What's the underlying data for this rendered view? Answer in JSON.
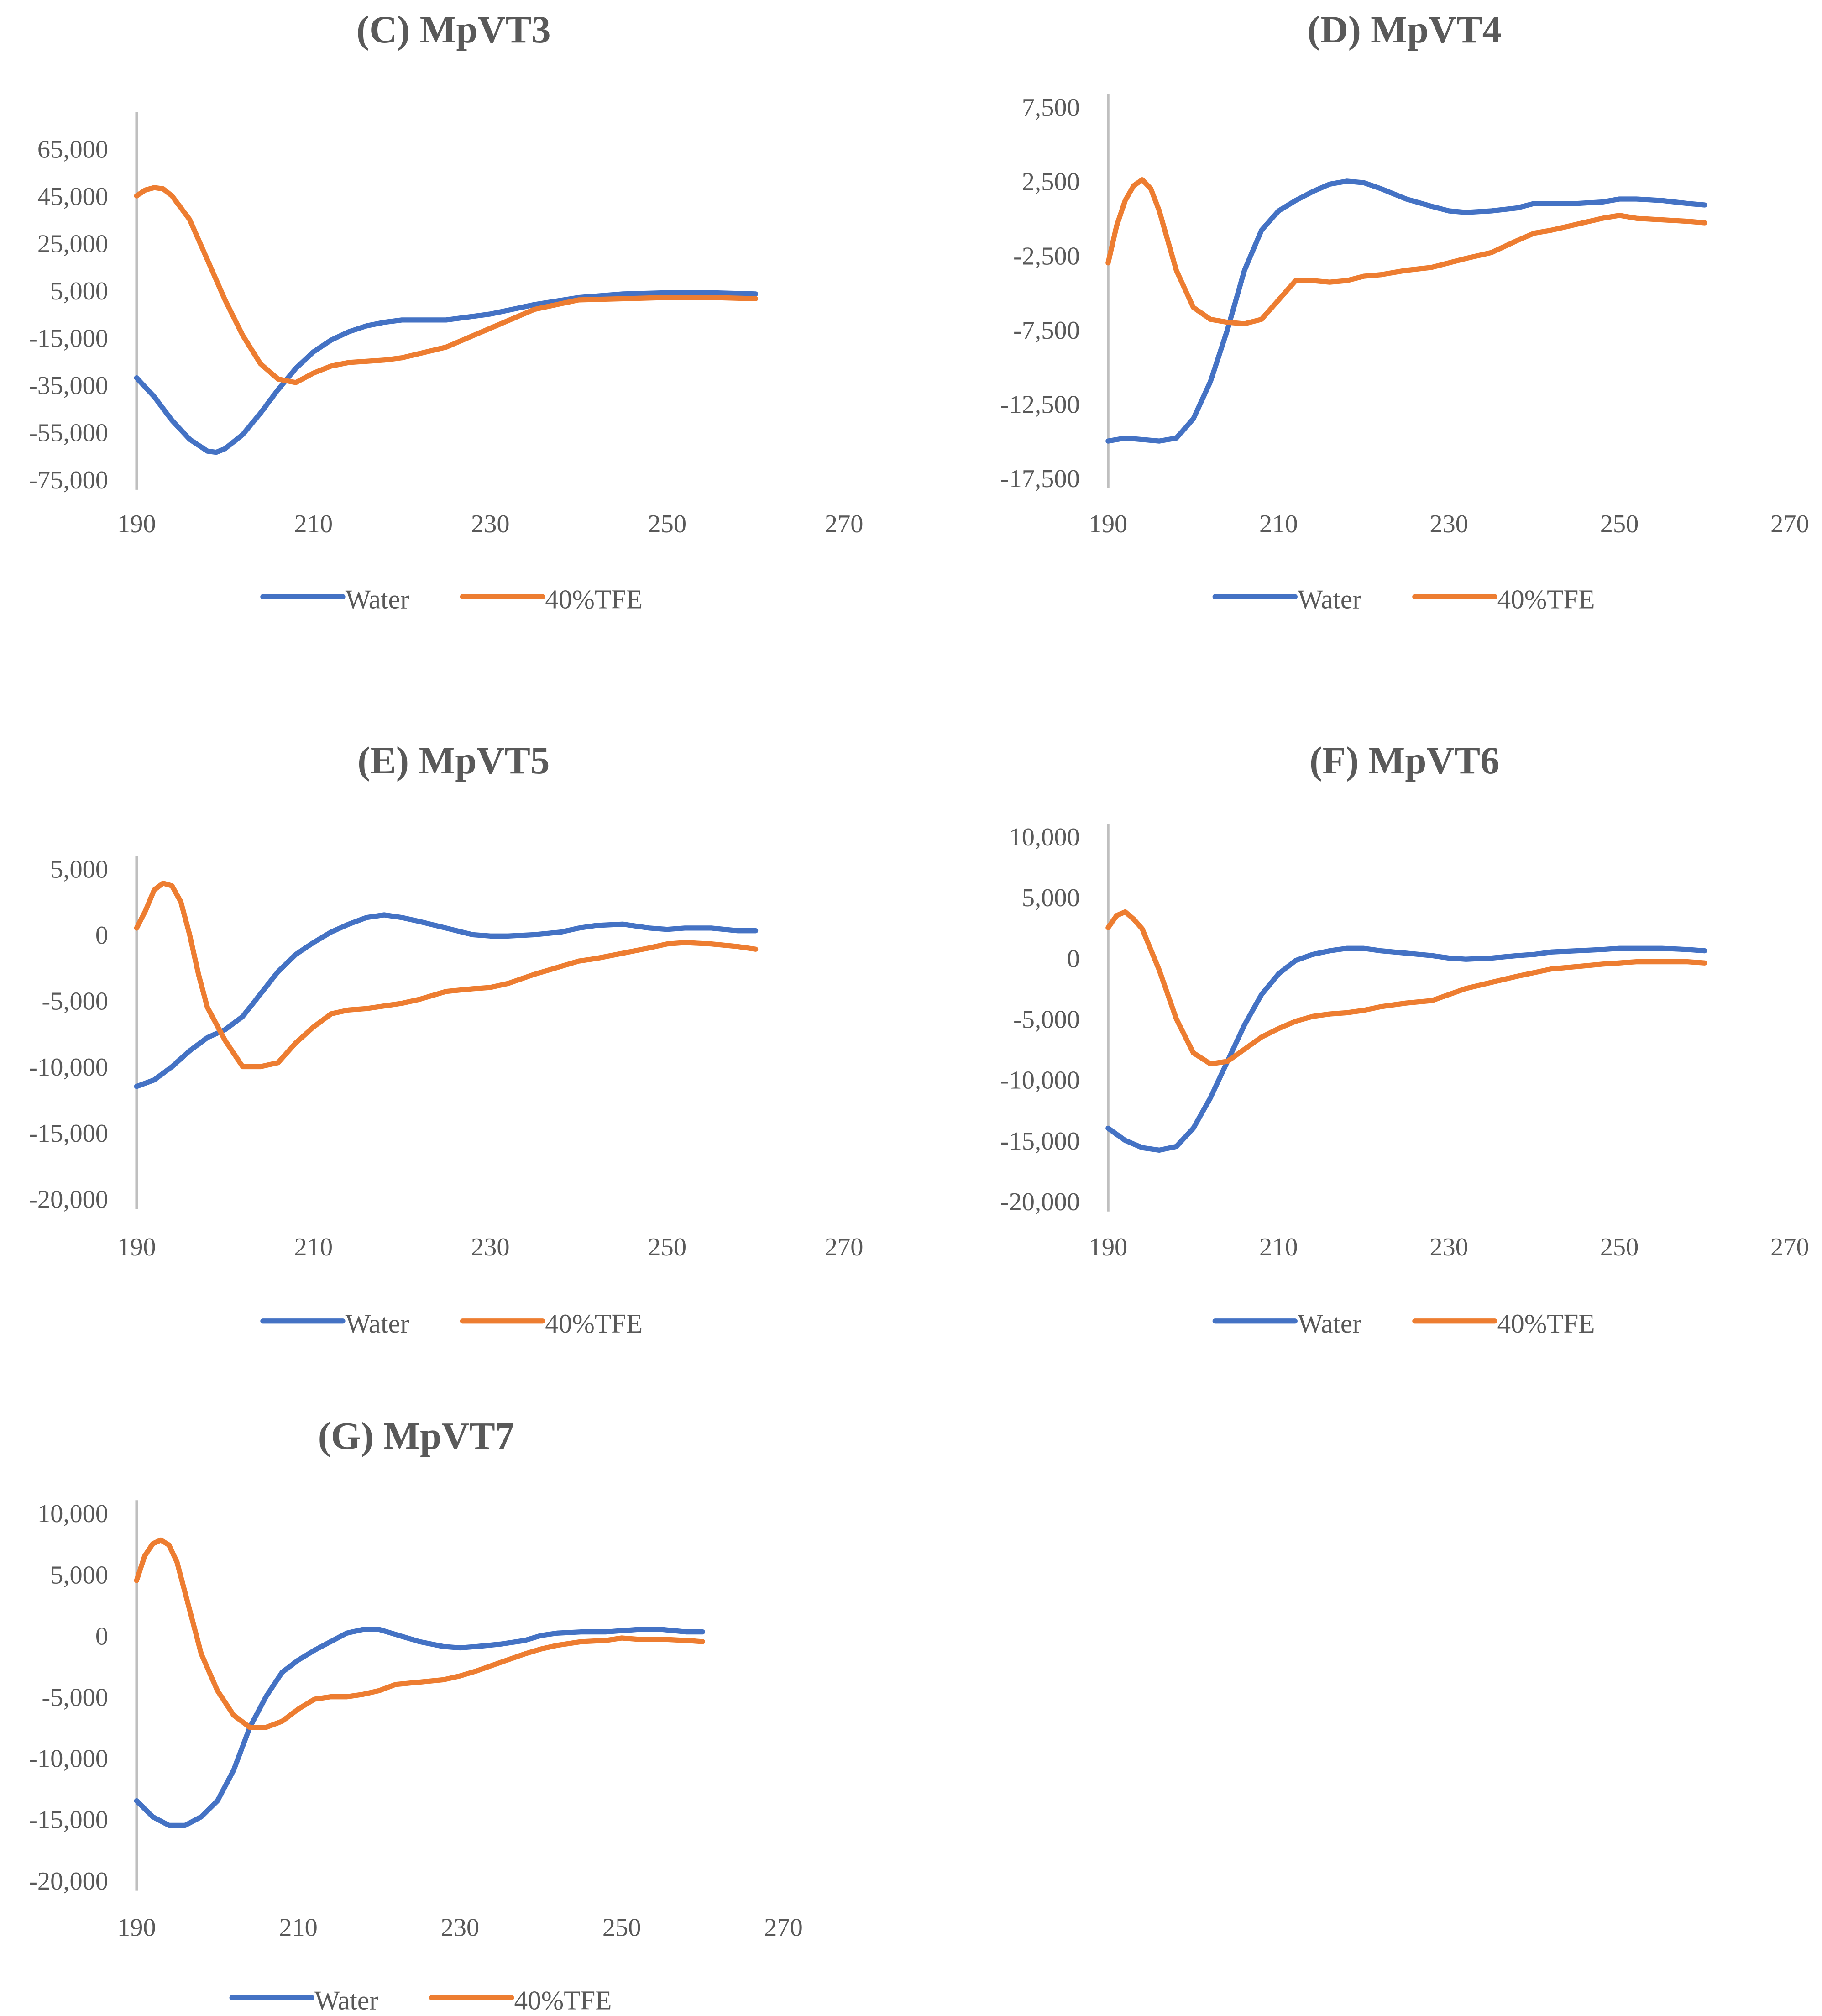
{
  "figure": {
    "series_names": [
      "Water",
      "40%TFE"
    ],
    "series_colors": [
      "#4472c4",
      "#ed7d31"
    ]
  },
  "chart_data": [
    {
      "type": "line",
      "title": "(C)  MpVT3",
      "xlim": [
        190,
        270
      ],
      "xticks": [
        190,
        210,
        230,
        250,
        270
      ],
      "xtick_labels": [
        "190",
        "210",
        "230",
        "250",
        "270"
      ],
      "ylim": [
        -75000,
        75000
      ],
      "yticks": [
        -75000,
        -55000,
        -35000,
        -15000,
        5000,
        25000,
        45000,
        65000
      ],
      "ytick_labels": [
        "-75,000",
        "-55,000",
        "-35,000",
        "-15,000",
        "5,000",
        "25,000",
        "45,000",
        "65,000"
      ],
      "legend": "bottom",
      "series": [
        {
          "name": "Water",
          "color": "#4472c4",
          "x": [
            190,
            192,
            194,
            196,
            198,
            199,
            200,
            202,
            204,
            206,
            208,
            210,
            212,
            214,
            216,
            218,
            220,
            225,
            230,
            235,
            240,
            245,
            250,
            255,
            260
          ],
          "y": [
            -32000,
            -40000,
            -50000,
            -58000,
            -63000,
            -63500,
            -62000,
            -56000,
            -47000,
            -37000,
            -28000,
            -21000,
            -16000,
            -12500,
            -10000,
            -8500,
            -7500,
            -7500,
            -5000,
            -1000,
            2000,
            3500,
            4000,
            4000,
            3500
          ]
        },
        {
          "name": "40%TFE",
          "color": "#ed7d31",
          "x": [
            190,
            191,
            192,
            193,
            194,
            196,
            198,
            200,
            202,
            204,
            206,
            208,
            210,
            212,
            214,
            216,
            218,
            220,
            225,
            230,
            235,
            240,
            245,
            250,
            255,
            260
          ],
          "y": [
            45000,
            47500,
            48500,
            48000,
            45000,
            35000,
            18000,
            1000,
            -14000,
            -26000,
            -32500,
            -34000,
            -30000,
            -27000,
            -25500,
            -25000,
            -24500,
            -23500,
            -19000,
            -11000,
            -3000,
            1000,
            1500,
            2000,
            2000,
            1500
          ]
        }
      ]
    },
    {
      "type": "line",
      "title": "(D)  MpVT4",
      "xlim": [
        190,
        270
      ],
      "xticks": [
        190,
        210,
        230,
        250,
        270
      ],
      "xtick_labels": [
        "190",
        "210",
        "230",
        "250",
        "270"
      ],
      "ylim": [
        -17500,
        7500
      ],
      "yticks": [
        -17500,
        -12500,
        -7500,
        -2500,
        2500,
        7500
      ],
      "ytick_labels": [
        "-17,500",
        "-12,500",
        "-7,500",
        "-2,500",
        "2,500",
        "7,500"
      ],
      "legend": "bottom",
      "series": [
        {
          "name": "Water",
          "color": "#4472c4",
          "x": [
            190,
            192,
            194,
            196,
            198,
            200,
            202,
            204,
            206,
            208,
            210,
            212,
            214,
            216,
            218,
            220,
            222,
            225,
            228,
            230,
            232,
            235,
            238,
            240,
            242,
            245,
            248,
            250,
            252,
            255,
            258,
            260
          ],
          "y": [
            -15000,
            -14800,
            -14900,
            -15000,
            -14800,
            -13500,
            -11000,
            -7500,
            -3500,
            -800,
            500,
            1200,
            1800,
            2300,
            2500,
            2400,
            2000,
            1300,
            800,
            500,
            400,
            500,
            700,
            1000,
            1000,
            1000,
            1100,
            1300,
            1300,
            1200,
            1000,
            900
          ]
        },
        {
          "name": "40%TFE",
          "color": "#ed7d31",
          "x": [
            190,
            191,
            192,
            193,
            194,
            195,
            196,
            197,
            198,
            200,
            202,
            204,
            206,
            208,
            210,
            212,
            214,
            216,
            218,
            220,
            222,
            225,
            228,
            230,
            232,
            235,
            238,
            240,
            242,
            245,
            248,
            250,
            252,
            255,
            258,
            260
          ],
          "y": [
            -3000,
            -500,
            1200,
            2200,
            2600,
            2000,
            500,
            -1500,
            -3500,
            -6000,
            -6800,
            -7000,
            -7100,
            -6800,
            -5500,
            -4200,
            -4200,
            -4300,
            -4200,
            -3900,
            -3800,
            -3500,
            -3300,
            -3000,
            -2700,
            -2300,
            -1500,
            -1000,
            -800,
            -400,
            0,
            200,
            0,
            -100,
            -200,
            -300
          ]
        }
      ]
    },
    {
      "type": "line",
      "title": "(E)  MpVT5",
      "xlim": [
        190,
        270
      ],
      "xticks": [
        190,
        210,
        230,
        250,
        270
      ],
      "xtick_labels": [
        "190",
        "210",
        "230",
        "250",
        "270"
      ],
      "ylim": [
        -20000,
        5000
      ],
      "yticks": [
        -20000,
        -15000,
        -10000,
        -5000,
        0,
        5000
      ],
      "ytick_labels": [
        "-20,000",
        "-15,000",
        "-10,000",
        "-5,000",
        "0",
        "5,000"
      ],
      "legend": "bottom",
      "series": [
        {
          "name": "Water",
          "color": "#4472c4",
          "x": [
            190,
            192,
            194,
            196,
            198,
            200,
            202,
            204,
            206,
            208,
            210,
            212,
            214,
            216,
            218,
            220,
            222,
            225,
            228,
            230,
            232,
            235,
            238,
            240,
            242,
            245,
            248,
            250,
            252,
            255,
            258,
            260
          ],
          "y": [
            -11500,
            -11000,
            -10000,
            -8800,
            -7800,
            -7200,
            -6200,
            -4500,
            -2800,
            -1500,
            -600,
            200,
            800,
            1300,
            1500,
            1300,
            1000,
            500,
            0,
            -100,
            -100,
            0,
            200,
            500,
            700,
            800,
            500,
            400,
            500,
            500,
            300,
            300
          ]
        },
        {
          "name": "40%TFE",
          "color": "#ed7d31",
          "x": [
            190,
            191,
            192,
            193,
            194,
            195,
            196,
            197,
            198,
            200,
            202,
            204,
            206,
            208,
            210,
            212,
            214,
            216,
            218,
            220,
            222,
            225,
            228,
            230,
            232,
            235,
            238,
            240,
            242,
            245,
            248,
            250,
            252,
            255,
            258,
            260
          ],
          "y": [
            500,
            1800,
            3400,
            3900,
            3700,
            2500,
            0,
            -3000,
            -5500,
            -8000,
            -10000,
            -10000,
            -9700,
            -8200,
            -7000,
            -6000,
            -5700,
            -5600,
            -5400,
            -5200,
            -4900,
            -4300,
            -4100,
            -4000,
            -3700,
            -3000,
            -2400,
            -2000,
            -1800,
            -1400,
            -1000,
            -700,
            -600,
            -700,
            -900,
            -1100
          ]
        }
      ]
    },
    {
      "type": "line",
      "title": "(F)  MpVT6",
      "xlim": [
        190,
        270
      ],
      "xticks": [
        190,
        210,
        230,
        250,
        270
      ],
      "xtick_labels": [
        "190",
        "210",
        "230",
        "250",
        "270"
      ],
      "ylim": [
        -20000,
        10000
      ],
      "yticks": [
        -20000,
        -15000,
        -10000,
        -5000,
        0,
        5000,
        10000
      ],
      "ytick_labels": [
        "-20,000",
        "-15,000",
        "-10,000",
        "-5,000",
        "0",
        "5,000",
        "10,000"
      ],
      "legend": "bottom",
      "series": [
        {
          "name": "Water",
          "color": "#4472c4",
          "x": [
            190,
            192,
            194,
            196,
            198,
            200,
            202,
            204,
            206,
            208,
            210,
            212,
            214,
            216,
            218,
            220,
            222,
            225,
            228,
            230,
            232,
            235,
            238,
            240,
            242,
            245,
            248,
            250,
            252,
            255,
            258,
            260
          ],
          "y": [
            -14000,
            -15000,
            -15600,
            -15800,
            -15500,
            -14000,
            -11500,
            -8500,
            -5500,
            -3000,
            -1300,
            -200,
            300,
            600,
            800,
            800,
            600,
            400,
            200,
            0,
            -100,
            0,
            200,
            300,
            500,
            600,
            700,
            800,
            800,
            800,
            700,
            600
          ]
        },
        {
          "name": "40%TFE",
          "color": "#ed7d31",
          "x": [
            190,
            191,
            192,
            193,
            194,
            196,
            198,
            200,
            202,
            204,
            206,
            208,
            210,
            212,
            214,
            216,
            218,
            220,
            222,
            225,
            228,
            230,
            232,
            235,
            238,
            240,
            242,
            245,
            248,
            250,
            252,
            255,
            258,
            260
          ],
          "y": [
            2500,
            3500,
            3800,
            3200,
            2400,
            -1000,
            -5000,
            -7800,
            -8700,
            -8500,
            -7500,
            -6500,
            -5800,
            -5200,
            -4800,
            -4600,
            -4500,
            -4300,
            -4000,
            -3700,
            -3500,
            -3000,
            -2500,
            -2000,
            -1500,
            -1200,
            -900,
            -700,
            -500,
            -400,
            -300,
            -300,
            -300,
            -400
          ]
        }
      ]
    },
    {
      "type": "line",
      "title": "(G)  MpVT7",
      "xlim": [
        190,
        270
      ],
      "xticks": [
        190,
        210,
        230,
        250,
        270
      ],
      "xtick_labels": [
        "190",
        "210",
        "230",
        "250",
        "270"
      ],
      "ylim": [
        -20000,
        10000
      ],
      "yticks": [
        -20000,
        -15000,
        -10000,
        -5000,
        0,
        5000,
        10000
      ],
      "ytick_labels": [
        "-20,000",
        "-15,000",
        "-10,000",
        "-5,000",
        "0",
        "5,000",
        "10,000"
      ],
      "legend": "bottom",
      "series": [
        {
          "name": "Water",
          "color": "#4472c4",
          "x": [
            190,
            192,
            194,
            196,
            198,
            200,
            202,
            204,
            206,
            208,
            210,
            212,
            214,
            216,
            218,
            220,
            222,
            225,
            228,
            230,
            232,
            235,
            238,
            240,
            242,
            245,
            248,
            250,
            252,
            255,
            258,
            260
          ],
          "y": [
            -13500,
            -14800,
            -15500,
            -15500,
            -14800,
            -13500,
            -11000,
            -7500,
            -5000,
            -3000,
            -2000,
            -1200,
            -500,
            200,
            500,
            500,
            100,
            -500,
            -900,
            -1000,
            -900,
            -700,
            -400,
            0,
            200,
            300,
            300,
            400,
            500,
            500,
            300,
            300
          ]
        },
        {
          "name": "40%TFE",
          "color": "#ed7d31",
          "x": [
            190,
            191,
            192,
            193,
            194,
            195,
            196,
            197,
            198,
            200,
            202,
            204,
            206,
            208,
            210,
            212,
            214,
            216,
            218,
            220,
            222,
            225,
            228,
            230,
            232,
            235,
            238,
            240,
            242,
            245,
            248,
            250,
            252,
            255,
            258,
            260
          ],
          "y": [
            4500,
            6500,
            7500,
            7800,
            7400,
            6000,
            3500,
            1000,
            -1500,
            -4500,
            -6500,
            -7500,
            -7500,
            -7000,
            -6000,
            -5200,
            -5000,
            -5000,
            -4800,
            -4500,
            -4000,
            -3800,
            -3600,
            -3300,
            -2900,
            -2200,
            -1500,
            -1100,
            -800,
            -500,
            -400,
            -200,
            -300,
            -300,
            -400,
            -500
          ]
        }
      ]
    }
  ]
}
